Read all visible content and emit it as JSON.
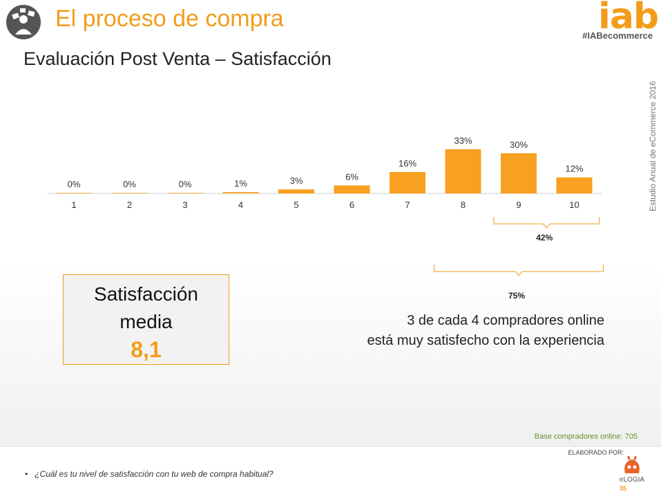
{
  "header": {
    "title": "El proceso de compra",
    "logo_text": "iab",
    "hashtag": "#IABecommerce"
  },
  "slide": {
    "subtitle": "Evaluación Post Venta – Satisfacción",
    "vertical_note": "Estudio Anual de eCommerce 2016"
  },
  "chart_data": {
    "type": "bar",
    "categories": [
      "1",
      "2",
      "3",
      "4",
      "5",
      "6",
      "7",
      "8",
      "9",
      "10"
    ],
    "values": [
      0,
      0,
      0,
      1,
      3,
      6,
      16,
      33,
      30,
      12
    ],
    "value_labels": [
      "0%",
      "0%",
      "0%",
      "1%",
      "3%",
      "6%",
      "16%",
      "33%",
      "30%",
      "12%"
    ],
    "unit": "%",
    "bar_color": "#f7a021",
    "ylim": [
      0,
      33
    ],
    "grid": false,
    "brackets": [
      {
        "categories": [
          "9",
          "10"
        ],
        "label": "42%"
      },
      {
        "categories": [
          "8",
          "9",
          "10"
        ],
        "label": "75%"
      }
    ]
  },
  "satisfaction": {
    "line1": "Satisfacción",
    "line2": "media",
    "value": "8,1"
  },
  "statement": {
    "line1": "3 de cada 4 compradores online",
    "line2": "está muy satisfecho con la experiencia"
  },
  "footer": {
    "base_note": "Base compradores online: 705",
    "elaborado": "ELABORADO POR:",
    "elogia": "eLOGIA",
    "question": "¿Cuál es tu nivel de satisfacción con tu web de compra habitual?",
    "page_number": "35"
  },
  "colors": {
    "accent": "#f39c1a",
    "green_note": "#6a8f2e"
  }
}
